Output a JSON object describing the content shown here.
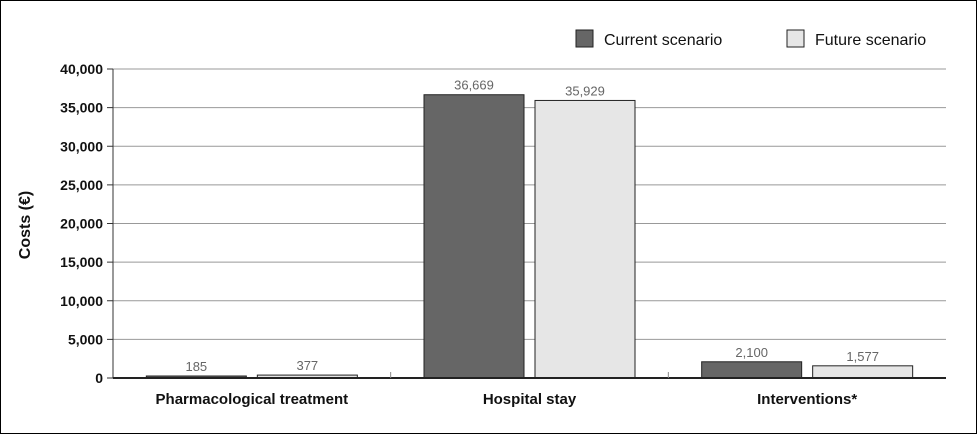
{
  "chart_data": {
    "type": "bar",
    "categories": [
      "Pharmacological treatment",
      "Hospital stay",
      "Interventions*"
    ],
    "series": [
      {
        "name": "Current scenario",
        "values": [
          185,
          36669,
          2100
        ],
        "labels": [
          "185",
          "36,669",
          "2,100"
        ],
        "color": "#666666"
      },
      {
        "name": "Future scenario",
        "values": [
          377,
          35929,
          1577
        ],
        "labels": [
          "377",
          "35,929",
          "1,577"
        ],
        "color": "#e6e6e6"
      }
    ],
    "ylabel": "Costs (€)",
    "ylim": [
      0,
      40000
    ],
    "yticks": [
      "0",
      "5,000",
      "10,000",
      "15,000",
      "20,000",
      "25,000",
      "30,000",
      "35,000",
      "40,000"
    ],
    "grid": true,
    "legend": "top-right"
  }
}
